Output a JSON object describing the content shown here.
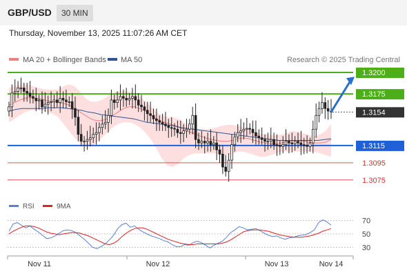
{
  "header": {
    "pair": "GBP/USD",
    "timeframe": "30 MIN",
    "datetime": "Thursday, November 13, 2025 11:07:26 AM CET"
  },
  "legend": {
    "ma20_label": "MA 20 + Bollinger Bands",
    "ma50_label": "MA 50",
    "credit": "Research © 2025 Trading Central",
    "ma20_color": "#f08080",
    "ma50_color": "#2f5597"
  },
  "rsi_legend": {
    "rsi_label": "RSI",
    "ma_label": "9MA",
    "rsi_color": "#5b7fd6",
    "ma_color": "#e02020"
  },
  "chart_data": [
    {
      "type": "candlestick",
      "title": "",
      "series": [
        {
          "name": "MA 20 + Bollinger Bands"
        },
        {
          "name": "MA 50"
        }
      ],
      "x_ticks": [
        "Nov 11",
        "Nov 12",
        "Nov 13",
        "Nov 14"
      ],
      "ylim": [
        1.3058,
        1.3208
      ],
      "current_price": 1.3154,
      "levels": [
        {
          "value": 1.32,
          "label": "1.3200",
          "style": "resistance",
          "color": "#4caf1a"
        },
        {
          "value": 1.3175,
          "label": "1.3175",
          "style": "resistance",
          "color": "#4caf1a"
        },
        {
          "value": 1.3115,
          "label": "1.3115",
          "style": "pivot",
          "color": "#1f5fd8"
        },
        {
          "value": 1.3095,
          "label": "1.3095",
          "style": "support",
          "color": "#e05050"
        },
        {
          "value": 1.3075,
          "label": "1.3075",
          "style": "support",
          "color": "#e05050"
        }
      ],
      "projection": {
        "from": 1.3154,
        "to": 1.3195
      },
      "close": [
        1.316,
        1.3176,
        1.3178,
        1.3182,
        1.3182,
        1.3178,
        1.3176,
        1.3172,
        1.317,
        1.3167,
        1.3168,
        1.316,
        1.3163,
        1.3165,
        1.3166,
        1.3168,
        1.3165,
        1.317,
        1.3168,
        1.3166,
        1.3166,
        1.3158,
        1.3148,
        1.3128,
        1.312,
        1.312,
        1.3122,
        1.3124,
        1.3128,
        1.313,
        1.3136,
        1.314,
        1.3142,
        1.315,
        1.3168,
        1.3165,
        1.3168,
        1.3172,
        1.317,
        1.3168,
        1.317,
        1.3172,
        1.3168,
        1.3162,
        1.316,
        1.3156,
        1.3152,
        1.315,
        1.3146,
        1.3144,
        1.3142,
        1.314,
        1.3138,
        1.3136,
        1.3135,
        1.3134,
        1.313,
        1.3129,
        1.3132,
        1.3134,
        1.314,
        1.315,
        1.3122,
        1.3118,
        1.312,
        1.3118,
        1.312,
        1.3116,
        1.3118,
        1.311,
        1.3105,
        1.309,
        1.3085,
        1.3098,
        1.3116,
        1.3125,
        1.313,
        1.3132,
        1.3134,
        1.3135,
        1.3134,
        1.313,
        1.3126,
        1.3124,
        1.3122,
        1.312,
        1.312,
        1.3122,
        1.3116,
        1.3115,
        1.3114,
        1.3116,
        1.312,
        1.3118,
        1.3117,
        1.312,
        1.3118,
        1.3116,
        1.3115,
        1.3114,
        1.3118,
        1.3134,
        1.315,
        1.3158,
        1.3165,
        1.3158,
        1.3155,
        1.3154
      ],
      "ma20": [
        1.3162,
        1.3165,
        1.3168,
        1.317,
        1.3171,
        1.317,
        1.3169,
        1.3167,
        1.3166,
        1.3165,
        1.3164,
        1.3162,
        1.3158,
        1.3154,
        1.315,
        1.3146,
        1.3144,
        1.3144,
        1.3146,
        1.315,
        1.3154,
        1.3158,
        1.316,
        1.316,
        1.3158,
        1.3155,
        1.315,
        1.3146,
        1.3143,
        1.3141,
        1.3139,
        1.3137,
        1.3134,
        1.3131,
        1.3129,
        1.3126,
        1.3124,
        1.3122,
        1.3121,
        1.312,
        1.312,
        1.3121,
        1.3123,
        1.3124,
        1.3123,
        1.3121,
        1.3119,
        1.3118,
        1.3117,
        1.3117,
        1.3118,
        1.312,
        1.3121,
        1.3121,
        1.312,
        1.3119,
        1.3118,
        1.3118,
        1.3119,
        1.3122
      ],
      "ma50": [
        1.3155,
        1.3157,
        1.3158,
        1.3158,
        1.3158,
        1.3158,
        1.3159,
        1.3159,
        1.3159,
        1.3158,
        1.3157,
        1.3156,
        1.3154,
        1.3153,
        1.3151,
        1.315,
        1.3149,
        1.3148,
        1.3147,
        1.3146,
        1.3144,
        1.3142,
        1.3141,
        1.314,
        1.3139,
        1.3138,
        1.3136,
        1.3135,
        1.3134,
        1.3133,
        1.3132,
        1.3131,
        1.313,
        1.3129,
        1.3128,
        1.3127,
        1.3126,
        1.3125,
        1.3124,
        1.3123,
        1.3122,
        1.3121,
        1.3121,
        1.3121,
        1.3121,
        1.3121,
        1.3121,
        1.3121,
        1.3122,
        1.3123
      ],
      "bb_upper": [
        1.3182,
        1.3184,
        1.3186,
        1.3186,
        1.3185,
        1.3183,
        1.3181,
        1.318,
        1.318,
        1.318,
        1.3184,
        1.3186,
        1.3184,
        1.3178,
        1.317,
        1.3166,
        1.3166,
        1.3168,
        1.3172,
        1.3176,
        1.3178,
        1.3178,
        1.3178,
        1.3176,
        1.3172,
        1.3166,
        1.316,
        1.3154,
        1.315,
        1.3148,
        1.3148,
        1.3146,
        1.3142,
        1.3138,
        1.3135,
        1.3134,
        1.3134,
        1.3134,
        1.3136,
        1.3138,
        1.3139,
        1.3139,
        1.3138,
        1.3136,
        1.3134,
        1.3131,
        1.3129,
        1.3128,
        1.3127,
        1.3127,
        1.3128,
        1.313,
        1.3132,
        1.3131,
        1.3129,
        1.3127,
        1.3126,
        1.3128,
        1.3132,
        1.314
      ],
      "bb_lower": [
        1.3142,
        1.3146,
        1.315,
        1.3154,
        1.3156,
        1.3156,
        1.3156,
        1.3154,
        1.3152,
        1.3148,
        1.314,
        1.3132,
        1.3124,
        1.3118,
        1.3114,
        1.3114,
        1.3118,
        1.3124,
        1.313,
        1.3136,
        1.314,
        1.3142,
        1.3142,
        1.314,
        1.3136,
        1.313,
        1.3122,
        1.3112,
        1.31,
        1.3092,
        1.309,
        1.3094,
        1.31,
        1.3104,
        1.3106,
        1.3106,
        1.3106,
        1.3106,
        1.3106,
        1.3104,
        1.3104,
        1.3106,
        1.3108,
        1.3108,
        1.3106,
        1.3104,
        1.3102,
        1.3102,
        1.3104,
        1.3106,
        1.3108,
        1.3108,
        1.3108,
        1.3108,
        1.3108,
        1.3108,
        1.3108,
        1.3106,
        1.3104,
        1.3102
      ]
    },
    {
      "type": "line",
      "title": "RSI",
      "series": [
        {
          "name": "RSI",
          "values": [
            54,
            65,
            67,
            63,
            59,
            62,
            57,
            53,
            48,
            43,
            44,
            47,
            51,
            55,
            56,
            55,
            52,
            47,
            42,
            36,
            30,
            28,
            31,
            35,
            41,
            48,
            58,
            64,
            66,
            60,
            62,
            57,
            53,
            50,
            47,
            45,
            43,
            40,
            38,
            34,
            31,
            31,
            34,
            33,
            37,
            39,
            37,
            33,
            29,
            33,
            36,
            39,
            45,
            52,
            56,
            61,
            59,
            56,
            57,
            58,
            55,
            51,
            48,
            46,
            47,
            44,
            42,
            44,
            45,
            47,
            48,
            49,
            52,
            56,
            67,
            71,
            68,
            63
          ]
        },
        {
          "name": "9MA",
          "values": [
            50,
            54,
            57,
            60,
            62,
            62,
            61,
            59,
            56,
            53,
            51,
            50,
            49,
            50,
            51,
            52,
            52,
            51,
            49,
            47,
            44,
            41,
            38,
            35,
            34,
            36,
            40,
            46,
            51,
            55,
            58,
            59,
            59,
            57,
            54,
            51,
            48,
            45,
            42,
            40,
            38,
            36,
            35,
            34,
            34,
            35,
            35,
            35,
            35,
            35,
            35,
            36,
            38,
            41,
            45,
            49,
            53,
            55,
            56,
            56,
            56,
            55,
            54,
            52,
            50,
            48,
            47,
            46,
            45,
            45,
            45,
            46,
            47,
            49,
            51,
            54,
            56,
            58
          ]
        }
      ],
      "levels": [
        70,
        50,
        30
      ],
      "ylim": [
        20,
        80
      ]
    }
  ]
}
